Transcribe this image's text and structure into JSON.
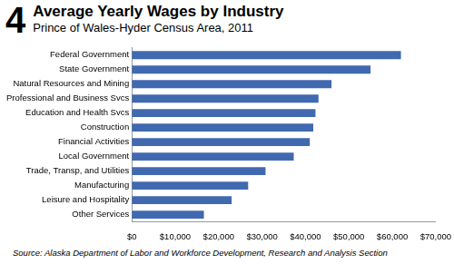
{
  "chart_data": {
    "type": "bar",
    "orientation": "horizontal",
    "figure_number": "4",
    "title": "Average Yearly Wages by Industry",
    "subtitle": "Prince of Wales-Hyder Census Area, 2011",
    "source": "Source: Alaska Department of Labor and Workforce Development, Research and Analysis Section",
    "categories": [
      "Federal Government",
      "State Government",
      "Natural Resources and Mining",
      "Professional and Business Svcs",
      "Education and Health Svcs",
      "Construction",
      "Financial Activities",
      "Local Government",
      "Trade, Transp, and Utilities",
      "Manufacturing",
      "Leisure and Hospitality",
      "Other Services"
    ],
    "values": [
      62000,
      55000,
      46000,
      43000,
      42300,
      41800,
      41000,
      37300,
      30800,
      26800,
      23000,
      16600
    ],
    "color": "#4169b0",
    "xlim": [
      0,
      70000
    ],
    "xticks": [
      {
        "value": 0,
        "label": "$0"
      },
      {
        "value": 10000,
        "label": "$10,000"
      },
      {
        "value": 20000,
        "label": "$20,000"
      },
      {
        "value": 30000,
        "label": "$30,000"
      },
      {
        "value": 40000,
        "label": "$40,000"
      },
      {
        "value": 50000,
        "label": "$50,000"
      },
      {
        "value": 60000,
        "label": "$60,000"
      },
      {
        "value": 70000,
        "label": "$70,000"
      }
    ],
    "grid": false
  }
}
